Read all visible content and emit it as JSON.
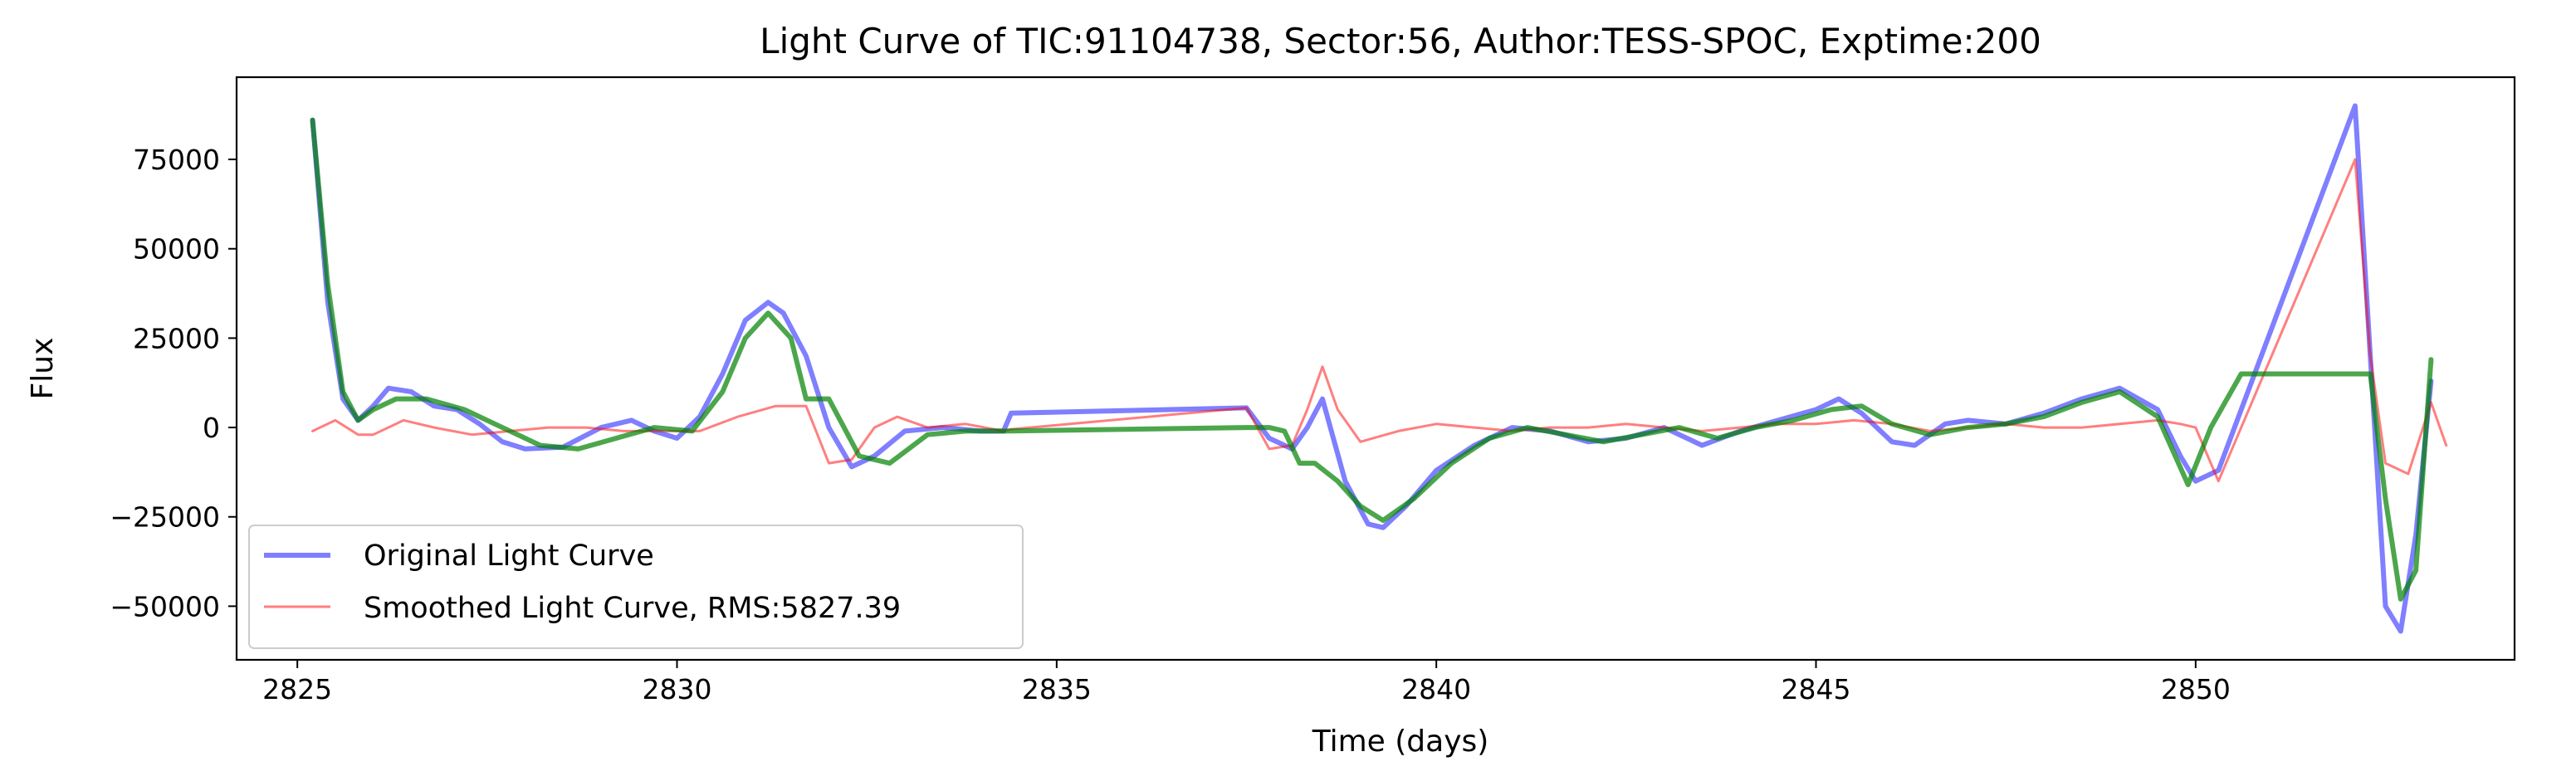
{
  "chart_data": {
    "type": "line",
    "title": "Light Curve of TIC:91104738, Sector:56, Author:TESS-SPOC, Exptime:200",
    "xlabel": "Time (days)",
    "ylabel": "Flux",
    "xlim": [
      2824.2,
      2854.2
    ],
    "ylim": [
      -65000,
      98000
    ],
    "xticks": [
      2825,
      2830,
      2835,
      2840,
      2845,
      2850
    ],
    "yticks": [
      -50000,
      -25000,
      0,
      25000,
      50000,
      75000
    ],
    "ytick_labels": [
      "−50000",
      "−25000",
      "0",
      "25000",
      "50000",
      "75000"
    ],
    "grid": false,
    "legend_position": "lower-left",
    "legend": [
      "Original Light Curve",
      "Smoothed Light Curve, RMS:5827.39"
    ],
    "series": [
      {
        "name": "Original Light Curve",
        "color": "#0000ff",
        "alpha": 0.5,
        "x": [
          2825.2,
          2825.4,
          2825.6,
          2825.8,
          2826.0,
          2826.2,
          2826.5,
          2826.8,
          2827.1,
          2827.4,
          2827.7,
          2828.0,
          2828.5,
          2829.0,
          2829.4,
          2829.7,
          2830.0,
          2830.3,
          2830.6,
          2830.9,
          2831.2,
          2831.4,
          2831.7,
          2832.0,
          2832.3,
          2832.6,
          2833.0,
          2833.5,
          2834.0,
          2834.3,
          2834.4,
          2837.5,
          2837.8,
          2838.1,
          2838.3,
          2838.5,
          2838.8,
          2839.1,
          2839.3,
          2839.6,
          2840.0,
          2840.5,
          2841.0,
          2841.5,
          2842.0,
          2842.5,
          2843.0,
          2843.5,
          2844.0,
          2844.5,
          2845.0,
          2845.3,
          2845.6,
          2846.0,
          2846.3,
          2846.7,
          2847.0,
          2847.5,
          2848.0,
          2848.5,
          2849.0,
          2849.5,
          2849.8,
          2850.0,
          2850.3,
          2852.1,
          2852.3,
          2852.5,
          2852.7,
          2852.9,
          2853.1
        ],
        "y": [
          86000,
          35000,
          8000,
          2000,
          6000,
          11000,
          10000,
          6000,
          5000,
          1000,
          -4000,
          -6000,
          -5500,
          0,
          2000,
          -1000,
          -3000,
          3000,
          15000,
          30000,
          35000,
          32000,
          20000,
          0,
          -11000,
          -8000,
          -1000,
          0,
          -1000,
          -1000,
          4000,
          5500,
          -3000,
          -6000,
          0,
          8000,
          -15000,
          -27000,
          -28000,
          -22000,
          -12000,
          -5000,
          0,
          -1000,
          -4000,
          -3000,
          0,
          -5000,
          -1000,
          2000,
          5000,
          8000,
          4000,
          -4000,
          -5000,
          1000,
          2000,
          1000,
          4000,
          8000,
          11000,
          5000,
          -8000,
          -15000,
          -12000,
          90000,
          20000,
          -50000,
          -57000,
          -30000,
          13000
        ]
      },
      {
        "name": "Smoothed Light Curve, RMS:5827.39",
        "color": "#ff0000",
        "alpha": 0.5,
        "x": [
          2825.2,
          2825.5,
          2825.8,
          2826.0,
          2826.4,
          2826.8,
          2827.3,
          2827.8,
          2828.3,
          2828.8,
          2829.3,
          2829.8,
          2830.3,
          2830.8,
          2831.3,
          2831.7,
          2832.0,
          2832.3,
          2832.6,
          2832.9,
          2833.3,
          2833.8,
          2834.3,
          2834.4,
          2837.5,
          2837.8,
          2838.1,
          2838.3,
          2838.5,
          2838.7,
          2839.0,
          2839.5,
          2840.0,
          2840.5,
          2841.0,
          2841.5,
          2842.0,
          2842.5,
          2843.0,
          2843.5,
          2844.0,
          2844.5,
          2845.0,
          2845.5,
          2846.0,
          2846.5,
          2847.0,
          2847.5,
          2848.0,
          2848.5,
          2849.0,
          2849.5,
          2849.8,
          2850.0,
          2850.3,
          2850.6,
          2852.1,
          2852.3,
          2852.5,
          2852.8,
          2853.1,
          2853.3
        ],
        "y": [
          -1000,
          2000,
          -2000,
          -2000,
          2000,
          0,
          -2000,
          -1000,
          0,
          0,
          -1000,
          -1000,
          -1000,
          3000,
          6000,
          6000,
          -10000,
          -9000,
          0,
          3000,
          0,
          1000,
          -1000,
          -500,
          5500,
          -6000,
          -5000,
          5000,
          17000,
          5000,
          -4000,
          -1000,
          1000,
          0,
          -1000,
          0,
          0,
          1000,
          0,
          -1000,
          0,
          1000,
          1000,
          2000,
          1000,
          -1000,
          0,
          1000,
          0,
          0,
          1000,
          2000,
          1000,
          0,
          -15000,
          0,
          75000,
          20000,
          -10000,
          -13000,
          7000,
          -5000
        ]
      },
      {
        "name": "",
        "color": "#008000",
        "alpha": 0.7,
        "x": [
          2825.2,
          2825.4,
          2825.6,
          2825.8,
          2826.0,
          2826.3,
          2826.7,
          2827.2,
          2827.7,
          2828.2,
          2828.7,
          2829.2,
          2829.7,
          2830.2,
          2830.6,
          2830.9,
          2831.2,
          2831.5,
          2831.7,
          2832.0,
          2832.4,
          2832.8,
          2833.3,
          2833.8,
          2834.3,
          2837.5,
          2837.8,
          2838.0,
          2838.2,
          2838.4,
          2838.7,
          2839.0,
          2839.3,
          2839.7,
          2840.2,
          2840.7,
          2841.2,
          2841.7,
          2842.2,
          2842.7,
          2843.2,
          2843.7,
          2844.2,
          2844.7,
          2845.2,
          2845.6,
          2846.0,
          2846.5,
          2847.0,
          2847.5,
          2848.0,
          2848.5,
          2849.0,
          2849.5,
          2849.9,
          2850.2,
          2850.6,
          2851.0,
          2852.0,
          2852.3,
          2852.5,
          2852.7,
          2852.9,
          2853.1
        ],
        "y": [
          86000,
          40000,
          10000,
          2000,
          5000,
          8000,
          8000,
          5000,
          0,
          -5000,
          -6000,
          -3000,
          0,
          -1000,
          10000,
          25000,
          32000,
          25000,
          8000,
          8000,
          -8000,
          -10000,
          -2000,
          -1000,
          -1000,
          0,
          0,
          -1000,
          -10000,
          -10000,
          -15000,
          -22000,
          -26000,
          -20000,
          -10000,
          -3000,
          0,
          -2000,
          -4000,
          -2000,
          0,
          -3000,
          0,
          2000,
          5000,
          6000,
          1000,
          -2000,
          0,
          1000,
          3000,
          7000,
          10000,
          3000,
          -16000,
          0,
          15000,
          15000,
          15000,
          15000,
          -20000,
          -48000,
          -40000,
          19000
        ]
      }
    ]
  }
}
